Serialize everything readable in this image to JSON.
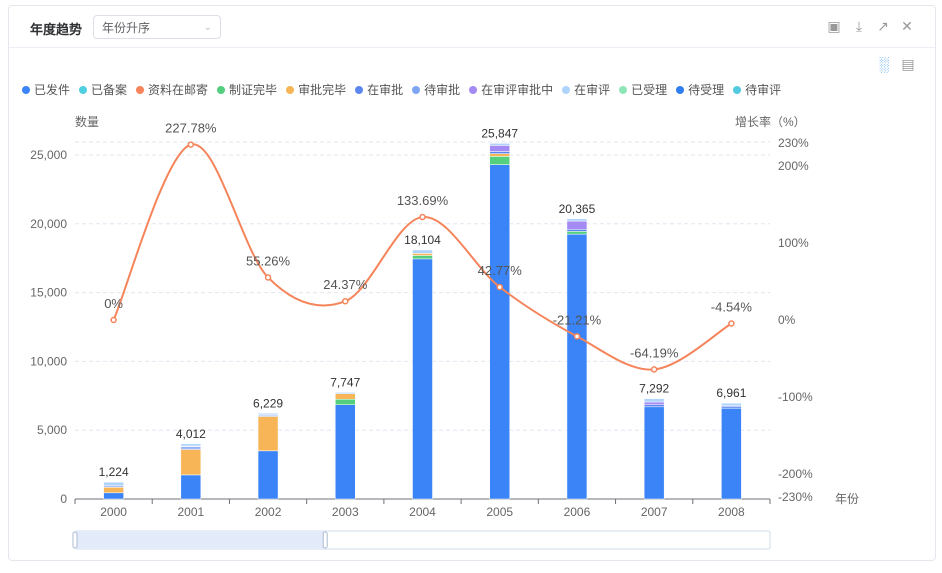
{
  "header": {
    "title": "年度趋势",
    "sort_select": "年份升序"
  },
  "toolbar": {
    "icons": [
      "fullscreen-icon",
      "download-icon",
      "open-external-icon",
      "close-icon"
    ],
    "view_icons": [
      "bar-chart-icon",
      "table-view-icon"
    ]
  },
  "chart_data": {
    "type": "bar",
    "categories": [
      "2000",
      "2001",
      "2002",
      "2003",
      "2004",
      "2005",
      "2006",
      "2007",
      "2008"
    ],
    "totals": [
      "1,224",
      "4,012",
      "6,229",
      "7,747",
      "18,104",
      "25,847",
      "20,365",
      "7,292",
      "6,961"
    ],
    "xlabel": "年份",
    "ylabel": "数量",
    "y2label": "增长率（%）",
    "ylim": [
      0,
      25000
    ],
    "yticks": [
      "0",
      "5,000",
      "10,000",
      "15,000",
      "20,000",
      "25,000"
    ],
    "y2lim": [
      -230,
      230
    ],
    "y2ticks": [
      "-230%",
      "-200%",
      "-100%",
      "0%",
      "100%",
      "200%",
      "230%"
    ],
    "series": [
      {
        "name": "已发件",
        "color": "#3a84f7",
        "values": [
          450,
          1750,
          3500,
          6850,
          17450,
          24300,
          19250,
          6700,
          6600
        ]
      },
      {
        "name": "已备案",
        "color": "#4fcfdf",
        "values": [
          0,
          0,
          0,
          0,
          0,
          0,
          0,
          0,
          0
        ]
      },
      {
        "name": "资料在邮寄",
        "color": "#f5845a",
        "values": [
          0,
          0,
          0,
          0,
          0,
          0,
          0,
          0,
          0
        ]
      },
      {
        "name": "制证完毕",
        "color": "#54cf7d",
        "values": [
          0,
          0,
          0,
          400,
          250,
          600,
          200,
          0,
          0
        ]
      },
      {
        "name": "审批完毕",
        "color": "#f7b557",
        "values": [
          400,
          1850,
          2500,
          400,
          150,
          200,
          0,
          0,
          0
        ]
      },
      {
        "name": "在审批",
        "color": "#5b86ee",
        "values": [
          80,
          100,
          60,
          0,
          0,
          150,
          150,
          150,
          100
        ]
      },
      {
        "name": "待审批",
        "color": "#7ea6f5",
        "values": [
          60,
          100,
          60,
          0,
          0,
          0,
          0,
          0,
          100
        ]
      },
      {
        "name": "在审评审批中",
        "color": "#a48af3",
        "values": [
          0,
          50,
          0,
          0,
          0,
          450,
          600,
          200,
          0
        ]
      },
      {
        "name": "在审评",
        "color": "#aed4fb",
        "values": [
          234,
          162,
          109,
          97,
          254,
          147,
          165,
          242,
          161
        ]
      },
      {
        "name": "已受理",
        "color": "#8ee6b8",
        "values": [
          0,
          0,
          0,
          0,
          0,
          0,
          0,
          0,
          0
        ]
      },
      {
        "name": "待受理",
        "color": "#2f7ff0",
        "values": [
          0,
          0,
          0,
          0,
          0,
          0,
          0,
          0,
          0
        ]
      },
      {
        "name": "待审评",
        "color": "#53c9e0",
        "values": [
          0,
          0,
          0,
          0,
          0,
          0,
          0,
          0,
          0
        ]
      }
    ],
    "line": {
      "name": "增长率",
      "color": "#f5845a",
      "values": [
        0,
        227.78,
        55.26,
        24.37,
        133.69,
        42.77,
        -21.21,
        -64.19,
        -4.54
      ],
      "labels": [
        "0%",
        "227.78%",
        "55.26%",
        "24.37%",
        "133.69%",
        "42.77%",
        "-21.21%",
        "-64.19%",
        "-4.54%"
      ]
    },
    "grid": true,
    "legend": "top-left",
    "datazoom": {
      "start": 0,
      "end": 0.36
    }
  }
}
